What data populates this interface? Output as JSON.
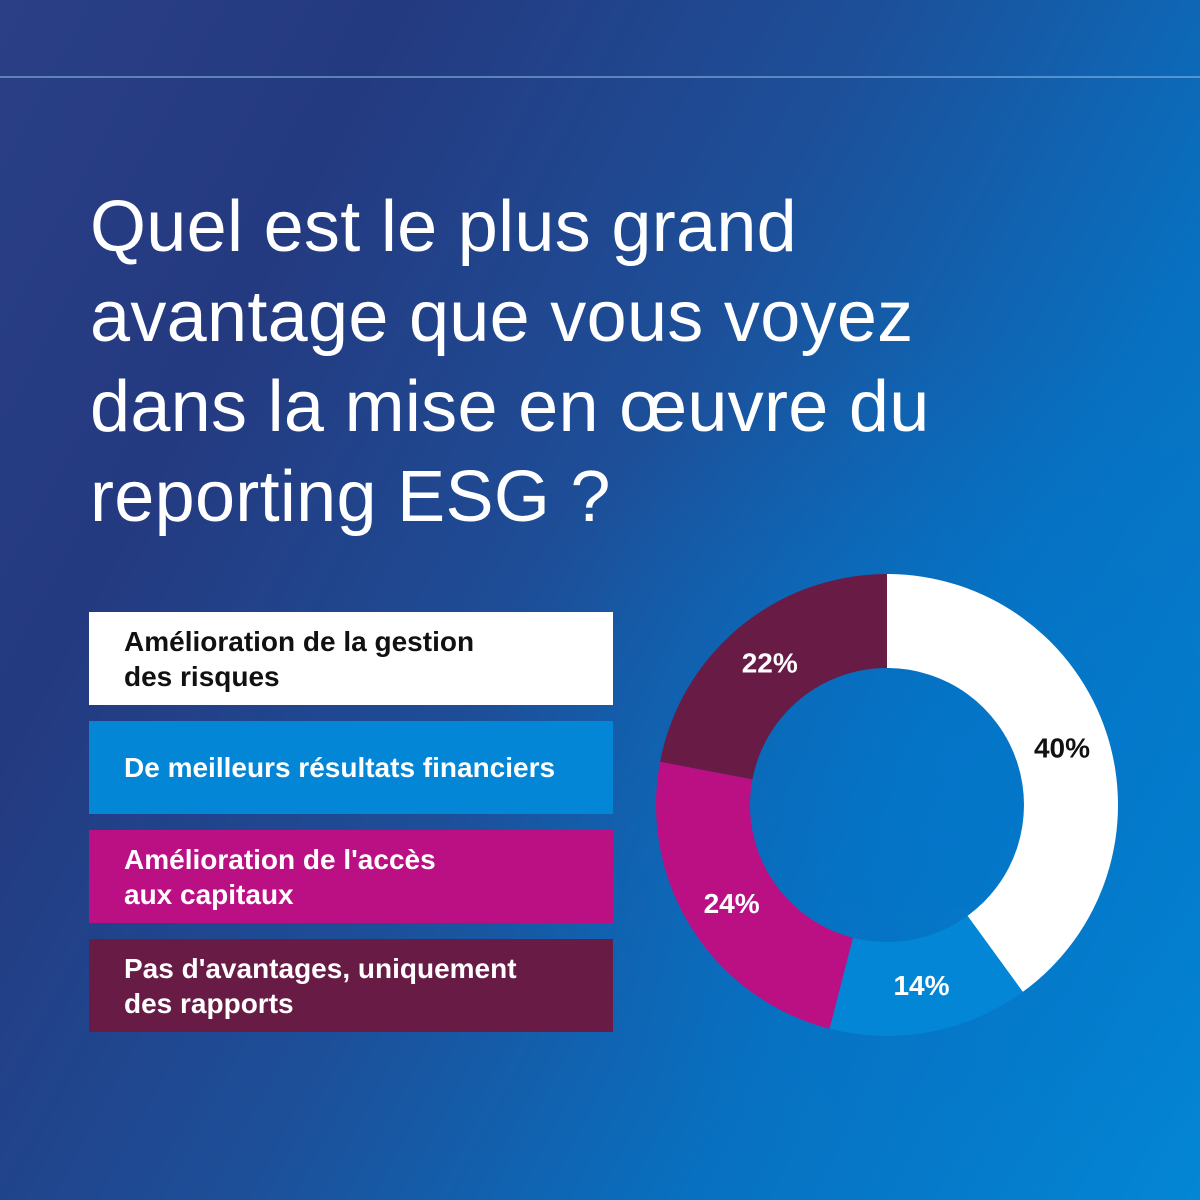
{
  "title": "Quel est le plus grand\navantage que vous voyez\ndans la mise en œuvre du\nreporting ESG ?",
  "chart_data": {
    "type": "pie",
    "donut": true,
    "categories": [
      "Amélioration de la gestion des risques",
      "De meilleurs résultats financiers",
      "Amélioration de l'accès aux capitaux",
      "Pas d'avantages, uniquement des rapports"
    ],
    "values": [
      40,
      14,
      24,
      22
    ],
    "value_labels": [
      "40%",
      "14%",
      "24%",
      "22%"
    ],
    "colors": [
      "#ffffff",
      "#0386d5",
      "#bb0f84",
      "#671b45"
    ],
    "label_colors": [
      "#111111",
      "#ffffff",
      "#ffffff",
      "#ffffff"
    ],
    "legend_placement": "left"
  },
  "legend": [
    {
      "label": "Amélioration de la gestion\ndes risques",
      "bg": "#ffffff",
      "fg": "#111111"
    },
    {
      "label": "De meilleurs résultats financiers",
      "bg": "#0386d5",
      "fg": "#ffffff"
    },
    {
      "label": "Amélioration de l'accès\naux capitaux",
      "bg": "#bb0f84",
      "fg": "#ffffff"
    },
    {
      "label": "Pas d'avantages, uniquement\ndes rapports",
      "bg": "#671b45",
      "fg": "#ffffff"
    }
  ]
}
